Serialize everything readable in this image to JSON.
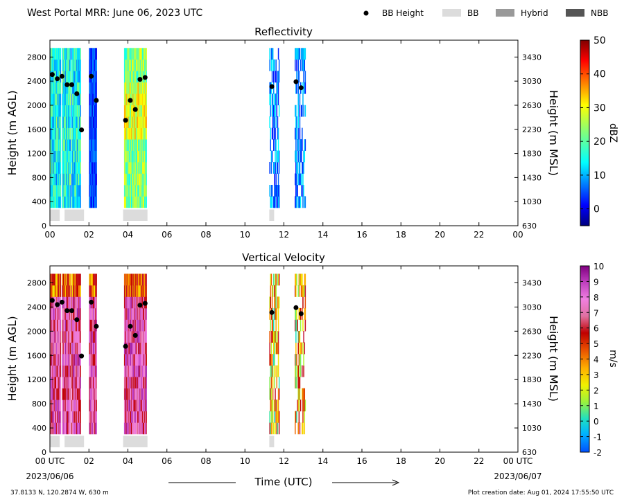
{
  "header": {
    "title": "West Portal MRR:  June 06, 2023 UTC",
    "legend": [
      {
        "label": "BB Height",
        "kind": "dot",
        "color": "#000000"
      },
      {
        "label": "BB",
        "kind": "bar",
        "color": "#dcdcdc"
      },
      {
        "label": "Hybrid",
        "kind": "bar",
        "color": "#999999"
      },
      {
        "label": "NBB",
        "kind": "bar",
        "color": "#555555"
      }
    ]
  },
  "footer": {
    "location": "37.8133 N, 120.2874 W, 630 m",
    "creation": "Plot creation date: Aug 01, 2024 17:55:50 UTC",
    "xlabel": "Time (UTC)",
    "start_date": "2023/06/06",
    "end_date": "2023/06/07"
  },
  "chart_data": [
    {
      "type": "heatmap",
      "title": "Reflectivity",
      "ylabel": "Height (m AGL)",
      "ylabel_right": "Height (m MSL)",
      "xlim": [
        0,
        24
      ],
      "ylim": [
        0,
        3080
      ],
      "x_ticks": [
        "00",
        "02",
        "04",
        "06",
        "08",
        "10",
        "12",
        "14",
        "16",
        "18",
        "20",
        "22",
        "00"
      ],
      "y_ticks": [
        0,
        400,
        800,
        1200,
        1600,
        2000,
        2400,
        2800
      ],
      "y_ticks_right": [
        630,
        1030,
        1430,
        1830,
        2230,
        2630,
        3030,
        3430
      ],
      "colorbar": {
        "label": "dBZ",
        "min": -5,
        "max": 50,
        "ticks": [
          0,
          10,
          20,
          30,
          40,
          50
        ],
        "colormap": "jet"
      },
      "bb_height": [
        {
          "x": 0.12,
          "y": 2510
        },
        {
          "x": 0.38,
          "y": 2440
        },
        {
          "x": 0.62,
          "y": 2480
        },
        {
          "x": 0.88,
          "y": 2340
        },
        {
          "x": 1.12,
          "y": 2340
        },
        {
          "x": 1.38,
          "y": 2190
        },
        {
          "x": 1.62,
          "y": 1590
        },
        {
          "x": 2.12,
          "y": 2480
        },
        {
          "x": 2.38,
          "y": 2080
        },
        {
          "x": 3.88,
          "y": 1750
        },
        {
          "x": 4.12,
          "y": 2080
        },
        {
          "x": 4.38,
          "y": 1930
        },
        {
          "x": 4.62,
          "y": 2430
        },
        {
          "x": 4.88,
          "y": 2460
        },
        {
          "x": 11.38,
          "y": 2310
        },
        {
          "x": 12.62,
          "y": 2390
        },
        {
          "x": 12.88,
          "y": 2290
        }
      ],
      "bb_type_segments": [
        {
          "start": 0.0,
          "end": 0.5,
          "type": "BB"
        },
        {
          "start": 0.75,
          "end": 1.75,
          "type": "BB"
        },
        {
          "start": 3.75,
          "end": 5.0,
          "type": "BB"
        },
        {
          "start": 11.25,
          "end": 11.5,
          "type": "BB"
        }
      ]
    },
    {
      "type": "heatmap",
      "title": "Vertical Velocity",
      "ylabel": "Height (m AGL)",
      "ylabel_right": "Height (m MSL)",
      "xlim": [
        0,
        24
      ],
      "ylim": [
        0,
        3080
      ],
      "x_ticks": [
        "00 UTC",
        "02",
        "04",
        "06",
        "08",
        "10",
        "12",
        "14",
        "16",
        "18",
        "20",
        "22",
        "00 UTC"
      ],
      "y_ticks": [
        0,
        400,
        800,
        1200,
        1600,
        2000,
        2400,
        2800
      ],
      "y_ticks_right": [
        630,
        1030,
        1430,
        1830,
        2230,
        2630,
        3030,
        3430
      ],
      "colorbar": {
        "label": "m/s",
        "min": -2,
        "max": 10,
        "ticks": [
          -2,
          -1,
          0,
          1,
          2,
          3,
          4,
          5,
          6,
          7,
          8,
          9,
          10
        ],
        "colormap": "velocity"
      },
      "bb_height": [
        {
          "x": 0.12,
          "y": 2510
        },
        {
          "x": 0.38,
          "y": 2440
        },
        {
          "x": 0.62,
          "y": 2480
        },
        {
          "x": 0.88,
          "y": 2340
        },
        {
          "x": 1.12,
          "y": 2340
        },
        {
          "x": 1.38,
          "y": 2190
        },
        {
          "x": 1.62,
          "y": 1590
        },
        {
          "x": 2.12,
          "y": 2480
        },
        {
          "x": 2.38,
          "y": 2080
        },
        {
          "x": 3.88,
          "y": 1750
        },
        {
          "x": 4.12,
          "y": 2080
        },
        {
          "x": 4.38,
          "y": 1930
        },
        {
          "x": 4.62,
          "y": 2430
        },
        {
          "x": 4.88,
          "y": 2460
        },
        {
          "x": 11.38,
          "y": 2310
        },
        {
          "x": 12.62,
          "y": 2390
        },
        {
          "x": 12.88,
          "y": 2290
        }
      ],
      "bb_type_segments": [
        {
          "start": 0.0,
          "end": 0.5,
          "type": "BB"
        },
        {
          "start": 0.75,
          "end": 1.75,
          "type": "BB"
        },
        {
          "start": 3.75,
          "end": 5.0,
          "type": "BB"
        },
        {
          "start": 11.25,
          "end": 11.5,
          "type": "BB"
        }
      ]
    }
  ]
}
